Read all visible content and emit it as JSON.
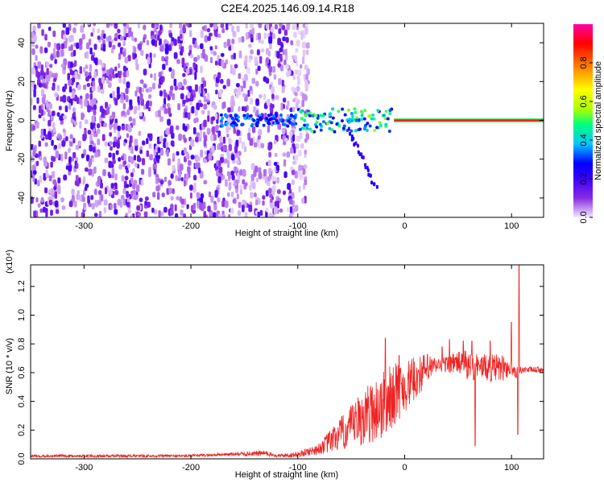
{
  "figure": {
    "title": "C2E4.2025.146.09.14.R18"
  },
  "chart_data": [
    {
      "type": "heatmap",
      "title": "C2E4.2025.146.09.14.R18",
      "xlabel": "Height of straight line (km)",
      "ylabel": "Frequency (Hz)",
      "xlim": [
        -350,
        130
      ],
      "ylim": [
        -50,
        50
      ],
      "xticks": [
        -300,
        -200,
        -100,
        0,
        100
      ],
      "yticks": [
        -40,
        -20,
        0,
        20,
        40
      ],
      "colorbar": {
        "label": "Normalized spectral amplitude",
        "range": [
          0.0,
          1.0
        ],
        "ticks": [
          0.0,
          0.2,
          0.4,
          0.6,
          0.8
        ],
        "colormap": [
          "#f2e6ff",
          "#8a2be2",
          "#3a00ff",
          "#0000ff",
          "#00c8ff",
          "#00ff80",
          "#aaff00",
          "#ffff00",
          "#ff8000",
          "#ff0000",
          "#ff00aa"
        ]
      },
      "regions": [
        {
          "x_range": [
            -350,
            -100
          ],
          "freq_range": [
            -50,
            50
          ],
          "level": "0.1-0.3",
          "pattern": "broadband noise"
        },
        {
          "x_range": [
            -170,
            -100
          ],
          "freq_range": [
            -4,
            4
          ],
          "level": "0.2-0.5",
          "pattern": "blue/cyan band near 0 Hz"
        },
        {
          "x_range": [
            -100,
            -10
          ],
          "freq_range": [
            -8,
            8
          ],
          "level": "0.3-0.7",
          "pattern": "cyan/green clustered band"
        },
        {
          "x_range": [
            -50,
            -25
          ],
          "freq_range": [
            -36,
            -5
          ],
          "level": "0.2-0.3",
          "pattern": "descending streak"
        },
        {
          "x_range": [
            -10,
            130
          ],
          "freq_range": [
            -1,
            1
          ],
          "level": "0.9-1.0",
          "pattern": "narrow red line at 0 Hz"
        }
      ]
    },
    {
      "type": "line",
      "title": "",
      "xlabel": "Height of straight line (km)",
      "ylabel": "SNR (10 * v/v)",
      "y_multiplier": "(x10⁴)",
      "xlim": [
        -350,
        130
      ],
      "ylim": [
        0,
        1.35
      ],
      "xticks": [
        -300,
        -200,
        -100,
        0,
        100
      ],
      "yticks": [
        0.0,
        0.2,
        0.4,
        0.6,
        0.8,
        1.0,
        1.2
      ],
      "series": [
        {
          "color": "#ee2222",
          "x": [
            -350,
            -300,
            -250,
            -200,
            -170,
            -130,
            -120,
            -100,
            -80,
            -70,
            -60,
            -50,
            -40,
            -30,
            -20,
            -10,
            0,
            10,
            20,
            30,
            40,
            50,
            60,
            70,
            80,
            90,
            100,
            105,
            110,
            120,
            130
          ],
          "y": [
            0.02,
            0.02,
            0.02,
            0.02,
            0.03,
            0.04,
            0.02,
            0.03,
            0.07,
            0.12,
            0.17,
            0.22,
            0.28,
            0.33,
            0.37,
            0.45,
            0.5,
            0.56,
            0.62,
            0.65,
            0.66,
            0.67,
            0.64,
            0.65,
            0.63,
            0.63,
            0.63,
            0.6,
            0.62,
            0.62,
            0.62
          ],
          "spread": [
            0.01,
            0.01,
            0.01,
            0.01,
            0.01,
            0.02,
            0.01,
            0.02,
            0.04,
            0.08,
            0.12,
            0.15,
            0.2,
            0.22,
            0.25,
            0.22,
            0.18,
            0.15,
            0.12,
            0.05,
            0.06,
            0.08,
            0.12,
            0.08,
            0.1,
            0.1,
            0.05,
            0.05,
            0.02,
            0.02,
            0.02
          ],
          "peaks": [
            [
              -18,
              0.84
            ],
            [
              -5,
              0.72
            ],
            [
              35,
              0.78
            ],
            [
              42,
              0.83
            ],
            [
              55,
              0.82
            ],
            [
              63,
              0.82
            ],
            [
              66,
              0.09
            ],
            [
              80,
              0.82
            ],
            [
              100,
              0.95
            ],
            [
              106,
              0.17
            ],
            [
              107,
              1.35
            ]
          ]
        }
      ]
    }
  ]
}
